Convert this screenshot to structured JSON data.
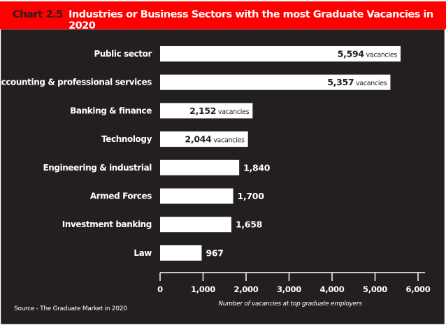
{
  "header": {
    "chart_number": "Chart 2.5",
    "title": "Industries or Business Sectors with the most Graduate Vacancies in 2020"
  },
  "source": "Source - The Graduate Market in 2020",
  "chart_data": {
    "type": "bar",
    "orientation": "horizontal",
    "title": "Industries or Business Sectors with the most Graduate Vacancies in 2020",
    "categories": [
      "Public sector",
      "Accounting & professional services",
      "Banking & finance",
      "Technology",
      "Engineering & industrial",
      "Armed Forces",
      "Investment banking",
      "Law"
    ],
    "values": [
      5594,
      5357,
      2152,
      2044,
      1840,
      1700,
      1658,
      967
    ],
    "value_labels": [
      "5,594",
      "5,357",
      "2,152",
      "2,044",
      "1,840",
      "1,700",
      "1,658",
      "967"
    ],
    "value_unit": "vacancies",
    "xlabel": "Number of vacancies at top graduate employers",
    "ylabel": "",
    "xlim": [
      0,
      6000
    ],
    "xticks": [
      "0",
      "1,000",
      "2,000",
      "3,000",
      "4,000",
      "5,000",
      "6,000"
    ],
    "grid": false,
    "colors": {
      "bar": "#ffffff",
      "background": "#231f20",
      "header": "#ff0000"
    }
  }
}
